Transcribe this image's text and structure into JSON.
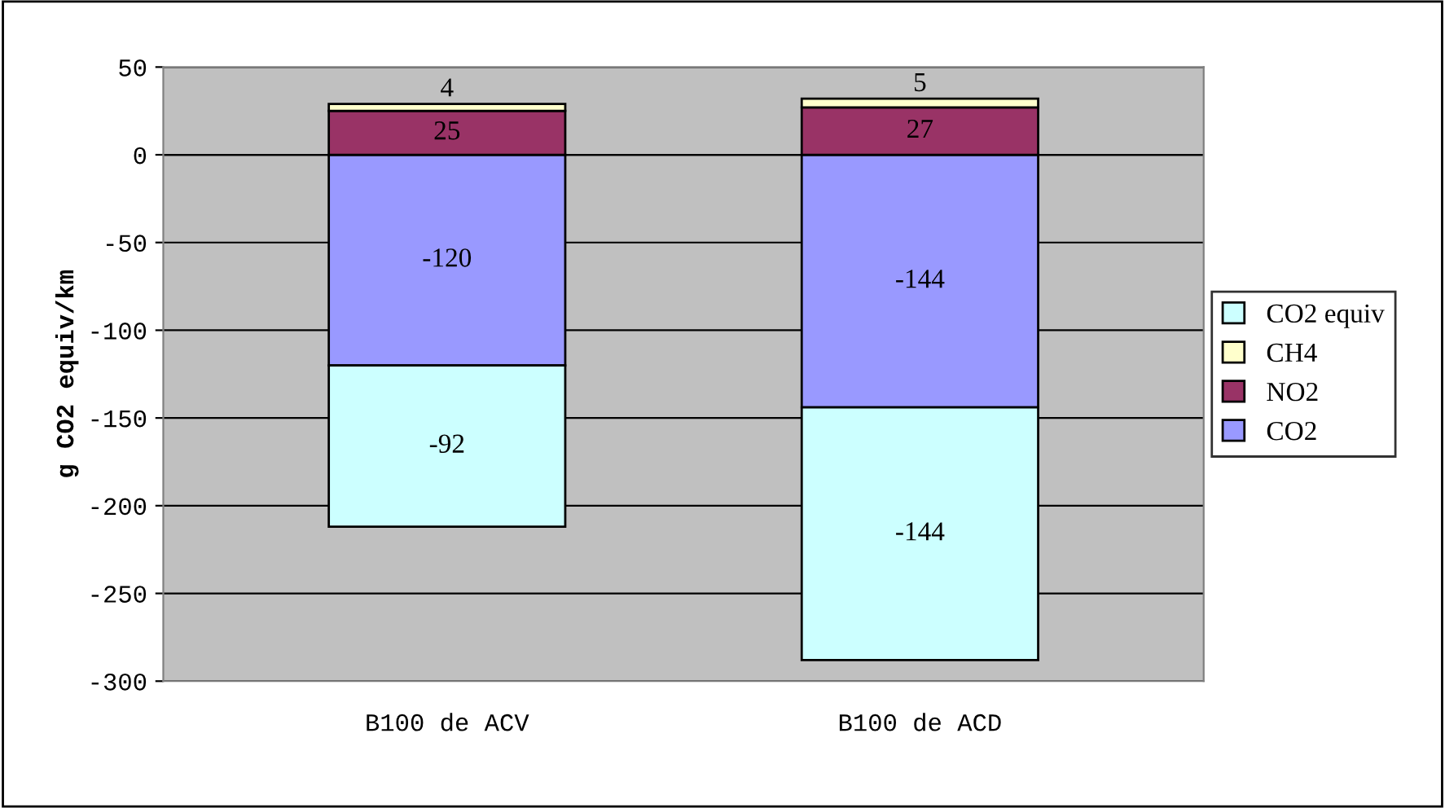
{
  "chart_data": {
    "type": "bar",
    "stacked": true,
    "ylabel": "g CO2 equiv/km",
    "categories": [
      "B100 de ACV",
      "B100 de ACD"
    ],
    "series": [
      {
        "name": "CO2",
        "color": "#9999ff",
        "values": [
          -120,
          -144
        ]
      },
      {
        "name": "NO2",
        "color": "#993366",
        "values": [
          25,
          27
        ]
      },
      {
        "name": "CH4",
        "color": "#ffffcc",
        "values": [
          4,
          5
        ]
      },
      {
        "name": "CO2 equiv",
        "color": "#ccffff",
        "values": [
          -92,
          -144
        ]
      }
    ],
    "ylim": [
      -300,
      50
    ],
    "yticks": [
      -300,
      -250,
      -200,
      -150,
      -100,
      -50,
      0,
      50
    ],
    "grid": "y",
    "legend": "right",
    "data_labels": true
  }
}
